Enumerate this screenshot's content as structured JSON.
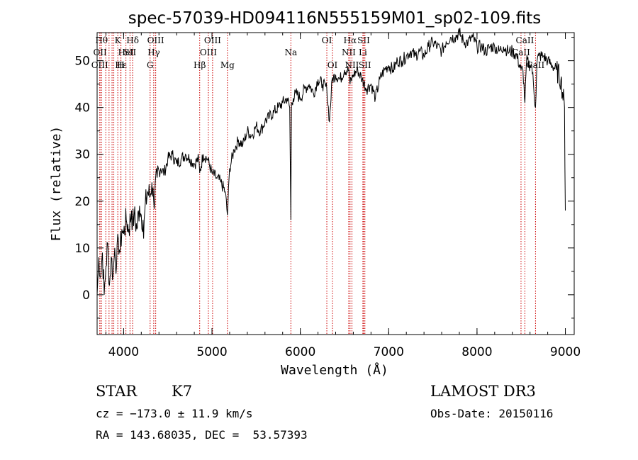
{
  "chart_data": {
    "type": "line",
    "title": "spec-57039-HD094116N555159M01_sp02-109.fits",
    "xlabel": "Wavelength (Å)",
    "ylabel": "Flux (relative)",
    "xlim": [
      3700,
      9100
    ],
    "ylim": [
      -8.5,
      56
    ],
    "xticks": [
      4000,
      5000,
      6000,
      7000,
      8000,
      9000
    ],
    "yticks": [
      0,
      10,
      20,
      30,
      40,
      50
    ],
    "grid": false,
    "line_color": "#000000",
    "marker_color": "#cc0000",
    "series": [
      {
        "name": "flux",
        "x": [
          3700,
          3720,
          3740,
          3760,
          3780,
          3800,
          3820,
          3840,
          3860,
          3880,
          3900,
          3920,
          3940,
          3960,
          3980,
          4000,
          4030,
          4060,
          4090,
          4100,
          4120,
          4150,
          4180,
          4200,
          4220,
          4226,
          4240,
          4270,
          4300,
          4320,
          4340,
          4380,
          4420,
          4460,
          4500,
          4550,
          4600,
          4650,
          4700,
          4750,
          4800,
          4850,
          4861,
          4900,
          4950,
          5000,
          5050,
          5100,
          5150,
          5175,
          5200,
          5250,
          5300,
          5350,
          5400,
          5450,
          5500,
          5550,
          5600,
          5650,
          5700,
          5750,
          5800,
          5850,
          5880,
          5893,
          5900,
          5920,
          5950,
          6000,
          6050,
          6100,
          6150,
          6200,
          6250,
          6300,
          6330,
          6360,
          6400,
          6450,
          6500,
          6550,
          6563,
          6600,
          6650,
          6700,
          6750,
          6800,
          6850,
          6900,
          6950,
          7000,
          7050,
          7100,
          7150,
          7200,
          7250,
          7300,
          7350,
          7400,
          7450,
          7500,
          7550,
          7600,
          7650,
          7700,
          7750,
          7800,
          7850,
          7900,
          7950,
          8000,
          8050,
          8100,
          8150,
          8200,
          8250,
          8300,
          8350,
          8400,
          8450,
          8498,
          8520,
          8542,
          8560,
          8600,
          8620,
          8662,
          8680,
          8700,
          8750,
          8800,
          8850,
          8900,
          8950,
          8990,
          9000
        ],
        "values": [
          0,
          8,
          4,
          9,
          0,
          6,
          11,
          2,
          8,
          4,
          10,
          6,
          12,
          9,
          14,
          13,
          16,
          14,
          18,
          15,
          17,
          14,
          19,
          17,
          16,
          12,
          18,
          22,
          21,
          24,
          20,
          25,
          27,
          26,
          29,
          30,
          28,
          29,
          30,
          29,
          28,
          29,
          26,
          30,
          29,
          26,
          25,
          24,
          22,
          17,
          27,
          31,
          33,
          32,
          35,
          34,
          36,
          35,
          37,
          38,
          39,
          40,
          41,
          42,
          40,
          16,
          41,
          42,
          43,
          42,
          44,
          45,
          43,
          46,
          45,
          44,
          37,
          46,
          47,
          46,
          48,
          48,
          45,
          47,
          48,
          46,
          44,
          45,
          42,
          46,
          48,
          49,
          48,
          50,
          50,
          51,
          52,
          51,
          52,
          51,
          53,
          54,
          53,
          52,
          54,
          55,
          55,
          56,
          54,
          54,
          55,
          53,
          53,
          52,
          53,
          53,
          52,
          53,
          52,
          52,
          51,
          48,
          48,
          41,
          50,
          49,
          49,
          40,
          50,
          51,
          51,
          50,
          49,
          48,
          46,
          40,
          18
        ]
      }
    ],
    "markers": [
      {
        "x": 3750,
        "label": "Hθ",
        "row": 0
      },
      {
        "x": 3733,
        "label": "OII",
        "row": 1
      },
      {
        "x": 3730,
        "label": "OIII",
        "row": 2
      },
      {
        "x": 3798,
        "label": "",
        "row": 2
      },
      {
        "x": 3835,
        "label": "",
        "row": 2
      },
      {
        "x": 3869,
        "label": "",
        "row": 2
      },
      {
        "x": 3889,
        "label": "",
        "row": 2
      },
      {
        "x": 3934,
        "label": "K",
        "row": 0
      },
      {
        "x": 3968,
        "label": "H",
        "row": 2
      },
      {
        "x": 3970,
        "label": "Hε",
        "row": 2
      },
      {
        "x": 4026,
        "label": "HeI",
        "row": 1
      },
      {
        "x": 4072,
        "label": "SII",
        "row": 1
      },
      {
        "x": 4102,
        "label": "Hδ",
        "row": 0
      },
      {
        "x": 4300,
        "label": "G",
        "row": 2
      },
      {
        "x": 4341,
        "label": "Hγ",
        "row": 1
      },
      {
        "x": 4363,
        "label": "OIII",
        "row": 0
      },
      {
        "x": 4861,
        "label": "Hβ",
        "row": 2
      },
      {
        "x": 4959,
        "label": "OIII",
        "row": 1
      },
      {
        "x": 5007,
        "label": "OIII",
        "row": 0
      },
      {
        "x": 5175,
        "label": "Mg",
        "row": 2
      },
      {
        "x": 5893,
        "label": "Na",
        "row": 1
      },
      {
        "x": 6300,
        "label": "OI",
        "row": 0
      },
      {
        "x": 6364,
        "label": "OI",
        "row": 2
      },
      {
        "x": 6548,
        "label": "NII",
        "row": 1
      },
      {
        "x": 6563,
        "label": "Hα",
        "row": 0
      },
      {
        "x": 6584,
        "label": "NII",
        "row": 2
      },
      {
        "x": 6708,
        "label": "Li",
        "row": 1
      },
      {
        "x": 6717,
        "label": "SII",
        "row": 0
      },
      {
        "x": 6731,
        "label": "SII",
        "row": 2
      },
      {
        "x": 8498,
        "label": "CaII",
        "row": 1
      },
      {
        "x": 8542,
        "label": "CaII",
        "row": 0
      },
      {
        "x": 8662,
        "label": "CaII",
        "row": 2
      }
    ]
  },
  "info": {
    "class": "STAR",
    "subclass": "K7",
    "survey": "LAMOST DR3",
    "cz": "cz = −173.0 ± 11.9 km/s",
    "obs_date": "Obs-Date: 20150116",
    "radec": "RA = 143.68035, DEC =  53.57393"
  }
}
